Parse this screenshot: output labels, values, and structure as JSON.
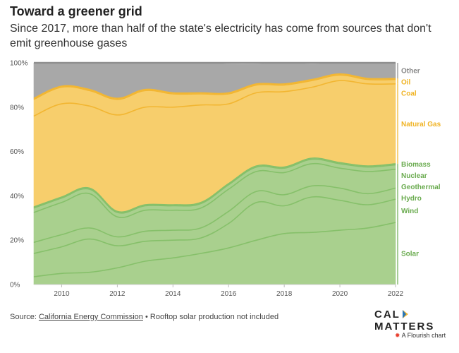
{
  "header": {
    "title": "Toward a greener grid",
    "subtitle": "Since 2017, more than half of the state's electricity has come from sources that don't emit greenhouse gases"
  },
  "footer": {
    "source_prefix": "Source: ",
    "source_link": "California Energy Commission",
    "note": " • Rooftop solar production not included"
  },
  "brand": {
    "left": "CAL",
    "right": "MATTERS"
  },
  "flourish": {
    "icon": "flourish-logo-icon",
    "label": "A Flourish chart"
  },
  "colors": {
    "green_fill": "#a9d08e",
    "green_line": "#86c06a",
    "green_label": "#6aab4f",
    "yellow_fill": "#f7ce6c",
    "yellow_line": "#f2b632",
    "yellow_label": "#f0b323",
    "gray_fill": "#a8a8a8",
    "gray_label": "#888888",
    "brand_accent": "#f2b632"
  },
  "chart_data": {
    "type": "area",
    "stacked": true,
    "x": [
      2009,
      2010,
      2011,
      2012,
      2013,
      2014,
      2015,
      2016,
      2017,
      2018,
      2019,
      2020,
      2021,
      2022
    ],
    "xticks": [
      2010,
      2012,
      2014,
      2016,
      2018,
      2020,
      2022
    ],
    "ylim": [
      0,
      100
    ],
    "yticks": [
      0,
      20,
      40,
      60,
      80,
      100
    ],
    "ytick_labels": [
      "0%",
      "20%",
      "40%",
      "60%",
      "80%",
      "100%"
    ],
    "series": [
      {
        "name": "Solar",
        "group": "green",
        "values": [
          3.5,
          5,
          5.5,
          7.5,
          10.5,
          12,
          14,
          16.5,
          20,
          23,
          23.5,
          24.5,
          25.5,
          28
        ]
      },
      {
        "name": "Wind",
        "group": "green",
        "values": [
          10.5,
          12,
          15,
          10,
          9,
          8,
          7,
          11,
          17,
          12.5,
          16,
          13.5,
          10.5,
          10.5
        ]
      },
      {
        "name": "Hydro",
        "group": "green",
        "values": [
          5,
          5.5,
          5,
          4,
          4.5,
          4.5,
          4.5,
          5.5,
          5,
          5,
          5,
          5.5,
          5,
          5
        ]
      },
      {
        "name": "Geothermal",
        "group": "green",
        "values": [
          13.5,
          14.5,
          15.5,
          9,
          9.5,
          9,
          9,
          10,
          9,
          10,
          10,
          9,
          10,
          8.5
        ]
      },
      {
        "name": "Nuclear",
        "group": "green",
        "values": [
          2,
          2,
          2,
          2,
          2,
          2,
          2,
          2,
          2,
          2,
          2,
          2,
          2,
          2
        ]
      },
      {
        "name": "Biomass",
        "group": "green",
        "values": [
          0.5,
          0.5,
          0.5,
          0.5,
          0.5,
          0.5,
          0.5,
          0.5,
          0.5,
          0.5,
          0.5,
          0.5,
          0.5,
          0.5
        ]
      },
      {
        "name": "Natural Gas",
        "group": "yellow",
        "values": [
          41,
          42,
          37,
          43.5,
          44,
          44,
          44,
          36,
          33,
          34,
          32,
          37,
          37,
          36
        ]
      },
      {
        "name": "Coal",
        "group": "yellow",
        "values": [
          7.5,
          7.5,
          7,
          7,
          7.5,
          6,
          5,
          4.5,
          3.5,
          3,
          3,
          2.5,
          2,
          2
        ]
      },
      {
        "name": "Oil",
        "group": "yellow",
        "values": [
          0.5,
          0.5,
          0.5,
          0.5,
          0.5,
          0.5,
          0.5,
          0.5,
          0.5,
          0.5,
          0.5,
          0.5,
          0.5,
          0.5
        ]
      },
      {
        "name": "Other",
        "group": "gray",
        "values": [
          16,
          10.5,
          12,
          16,
          12,
          13.5,
          13.5,
          13,
          9,
          9.5,
          7,
          5,
          7,
          7
        ]
      }
    ]
  }
}
